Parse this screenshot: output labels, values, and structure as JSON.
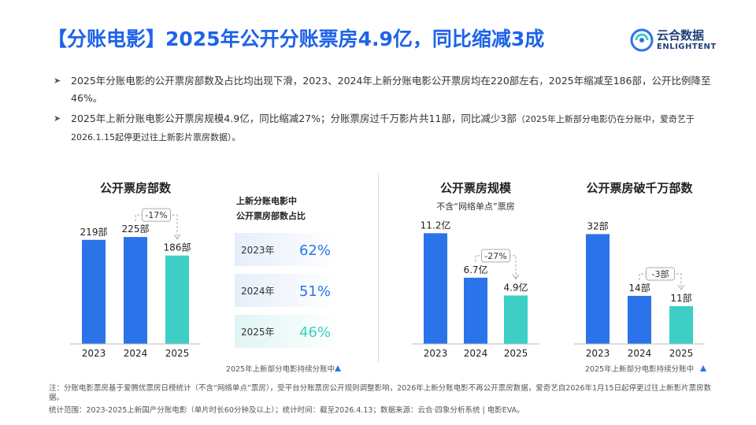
{
  "header": {
    "title": "【分账电影】2025年公开分账票房4.9亿，同比缩减3成",
    "logo_cn": "云合数据",
    "logo_en": "ENLIGHTENT"
  },
  "bullets": [
    {
      "text": "2025年分账电影的公开票房部数及占比均出现下滑，2023、2024年上新分账电影公开票房均在220部左右，2025年缩减至186部，公开比例降至46%。",
      "small": ""
    },
    {
      "text": "2025年上新分账电影公开票房规模4.9亿，同比缩减27%；分账票房过千万影片共11部，同比减少3部",
      "small": "（2025年上新部分电影仍在分账中，爱奇艺于2026.1.15起停更过往上新影片票房数据）。"
    }
  ],
  "colors": {
    "blue": "#2b73e8",
    "teal": "#3dcfc6",
    "title": "#1f63e8"
  },
  "share_panel": {
    "title_line1": "上新分账电影中",
    "title_line2": "公开票房部数占比",
    "rows": [
      {
        "year": "2023年",
        "pct": "62%"
      },
      {
        "year": "2024年",
        "pct": "51%"
      },
      {
        "year": "2025年",
        "pct": "46%"
      }
    ],
    "footnote": "2025年上新部分电影持续分账中"
  },
  "chart_data": [
    {
      "type": "bar",
      "title": "公开票房部数",
      "categories": [
        "2023",
        "2024",
        "2025"
      ],
      "values": [
        219,
        225,
        186
      ],
      "labels": [
        "219部",
        "225部",
        "186部"
      ],
      "change": "-17%",
      "ylim": [
        0,
        260
      ]
    },
    {
      "type": "bar",
      "title": "公开票房规模",
      "subtitle": "不含“网络单点”票房",
      "categories": [
        "2023",
        "2024",
        "2025"
      ],
      "values": [
        11.2,
        6.7,
        4.9
      ],
      "labels": [
        "11.2亿",
        "6.7亿",
        "4.9亿"
      ],
      "change": "-27%",
      "ylim": [
        0,
        12.5
      ]
    },
    {
      "type": "bar",
      "title": "公开票房破千万部数",
      "categories": [
        "2023",
        "2024",
        "2025"
      ],
      "values": [
        32,
        14,
        11
      ],
      "labels": [
        "32部",
        "14部",
        "11部"
      ],
      "change": "-3部",
      "ylim": [
        0,
        36
      ],
      "footnote": "2025年上新部分电影持续分账中"
    }
  ],
  "footer": {
    "note1": "注：分账电影票房基于爱腾优票房日榜统计（不含“网络单点”票房），受平台分账票房公开规则调整影响，2026年上新分账电影不再公开票房数据，爱奇艺自2026年1月15日起停更过往上新影片票房数据。",
    "note2": "统计范围：2023-2025上新国产分账电影（单片时长60分钟及以上）；统计时间：截至2026.4.13；数据来源：云合·四象分析系统 | 电影EVA。"
  }
}
